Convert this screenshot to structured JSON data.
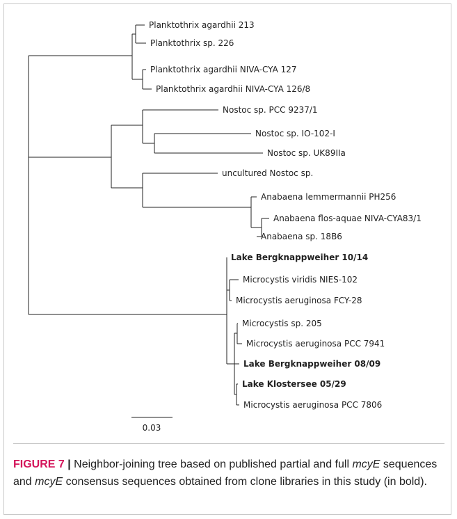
{
  "tree": {
    "taxa": [
      {
        "id": "t1",
        "label": "Planktothrix agardhii 213",
        "bold": false
      },
      {
        "id": "t2",
        "label": "Planktothrix sp. 226",
        "bold": false
      },
      {
        "id": "t3",
        "label": "Planktothrix agardhii NIVA-CYA 127",
        "bold": false
      },
      {
        "id": "t4",
        "label": "Planktothrix agardhii NIVA-CYA 126/8",
        "bold": false
      },
      {
        "id": "t5",
        "label": "Nostoc sp. PCC 9237/1",
        "bold": false
      },
      {
        "id": "t6",
        "label": "Nostoc sp. IO-102-I",
        "bold": false
      },
      {
        "id": "t7",
        "label": "Nostoc sp. UK89IIa",
        "bold": false
      },
      {
        "id": "t8",
        "label": "uncultured Nostoc sp.",
        "bold": false
      },
      {
        "id": "t9",
        "label": "Anabaena lemmermannii PH256",
        "bold": false
      },
      {
        "id": "t10",
        "label": "Anabaena flos-aquae NIVA-CYA83/1",
        "bold": false
      },
      {
        "id": "t11",
        "label": "Anabaena sp. 18B6",
        "bold": false
      },
      {
        "id": "t12",
        "label": "Lake Bergknappweiher 10/14",
        "bold": true
      },
      {
        "id": "t13",
        "label": "Microcystis viridis NIES-102",
        "bold": false
      },
      {
        "id": "t14",
        "label": "Microcystis aeruginosa FCY-28",
        "bold": false
      },
      {
        "id": "t15",
        "label": "Microcystis sp. 205",
        "bold": false
      },
      {
        "id": "t16",
        "label": "Microcystis aeruginosa PCC 7941",
        "bold": false
      },
      {
        "id": "t17",
        "label": "Lake Bergknappweiher 08/09",
        "bold": true
      },
      {
        "id": "t18",
        "label": "Lake Klostersee 05/29",
        "bold": true
      },
      {
        "id": "t19",
        "label": "Microcystis aeruginosa PCC 7806",
        "bold": false
      }
    ],
    "scale_bar_label": "0.03"
  },
  "caption": {
    "figure_label": "FIGURE 7",
    "separator": " | ",
    "part1": "Neighbor-joining tree based on published partial and full ",
    "gene1": "mcyE",
    "part2": " sequences and ",
    "gene2": "mcyE",
    "part3": " consensus sequences obtained from clone libraries in this study (in bold)."
  },
  "colors": {
    "figure_label": "#d4145a",
    "frame_border": "#c9c9c9",
    "tree_lines": "#222222"
  }
}
